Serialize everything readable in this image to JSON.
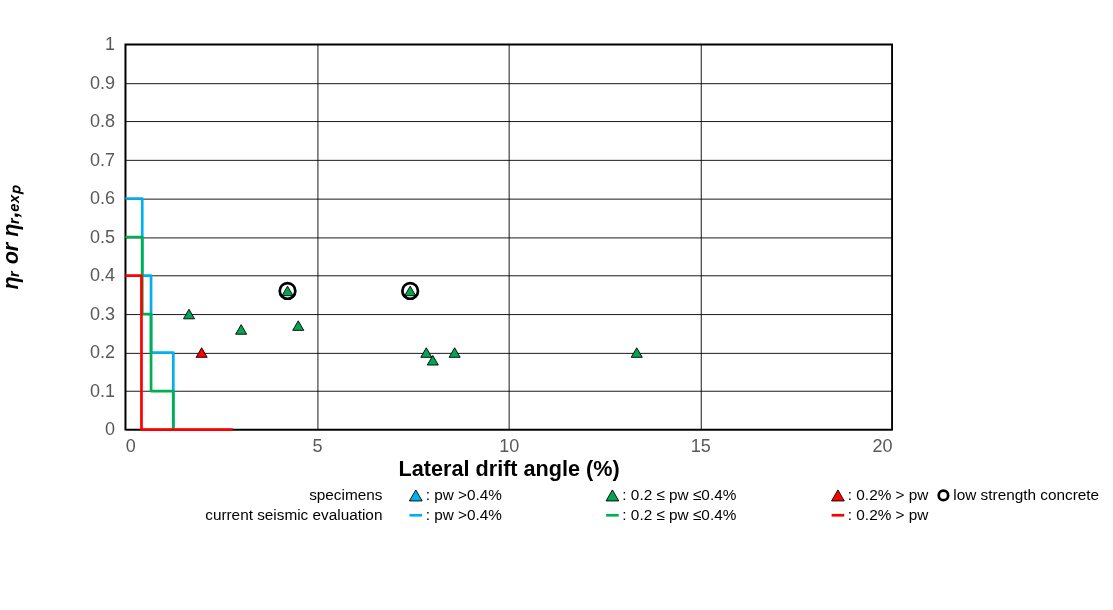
{
  "chart_data": {
    "type": "scatter",
    "xlabel": "Lateral drift angle (%)",
    "ylabel": "ηᵣ or ηᵣ,ₑₓₚ",
    "xlim": [
      0,
      20
    ],
    "xticks": [
      0,
      5,
      10,
      15,
      20
    ],
    "ylim": [
      0,
      1
    ],
    "yticks": [
      0,
      0.1,
      0.2,
      0.3,
      0.4,
      0.5,
      0.6,
      0.7,
      0.8,
      0.9,
      1
    ],
    "grid": true,
    "legend": "bottom",
    "annotations": [
      "specimens",
      "current seismic evaluation"
    ],
    "series": [
      {
        "name": ": pw >0.4%",
        "marker": "triangle",
        "color": "#00b0f0"
      },
      {
        "name": ": 0.2 ≤ pw ≤0.4%",
        "marker": "triangle",
        "color": "#00a650",
        "x": [
          1.66,
          3.02,
          4.23,
          4.51,
          7.43,
          7.85,
          8.02,
          8.59,
          13.34
        ],
        "values": [
          0.3,
          0.26,
          0.36,
          0.27,
          0.36,
          0.2,
          0.18,
          0.2,
          0.2
        ]
      },
      {
        "name": ": 0.2% > pw",
        "marker": "triangle",
        "color": "#ff0000",
        "x": [
          1.99
        ],
        "values": [
          0.2
        ]
      },
      {
        "name": "low strength concrete",
        "marker": "circle",
        "color": "#000000",
        "x": [
          4.23,
          7.43
        ],
        "values": [
          0.36,
          0.36
        ]
      },
      {
        "name": ": pw >0.4%",
        "type": "line",
        "color": "#00b0f0",
        "x": [
          0,
          0.44,
          0.44,
          0.67,
          0.67,
          1.25,
          1.25
        ],
        "values": [
          0.6,
          0.6,
          0.4,
          0.4,
          0.2,
          0.2,
          0
        ]
      },
      {
        "name": ": 0.2 ≤ pw ≤0.4%",
        "type": "line",
        "color": "#00b050",
        "x": [
          0,
          0.44,
          0.44,
          0.67,
          0.67,
          1.25,
          1.25
        ],
        "values": [
          0.5,
          0.5,
          0.3,
          0.3,
          0.1,
          0.1,
          0
        ]
      },
      {
        "name": ": 0.2% > pw",
        "type": "line",
        "color": "#ff0000",
        "x": [
          0,
          0.42,
          0.42,
          2.8
        ],
        "values": [
          0.4,
          0.4,
          0,
          0
        ]
      }
    ]
  }
}
